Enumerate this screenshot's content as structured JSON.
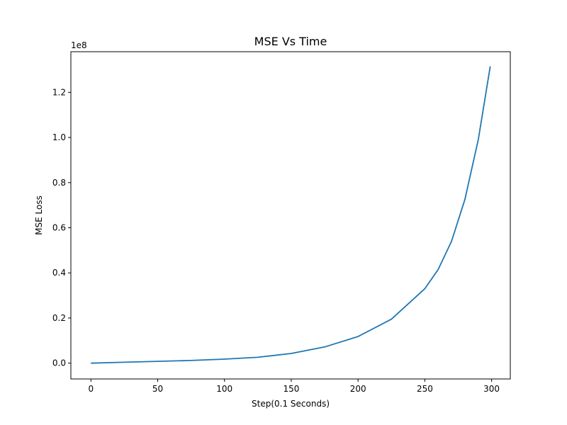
{
  "chart_data": {
    "type": "line",
    "title": "MSE Vs Time",
    "xlabel": "Step(0.1 Seconds)",
    "ylabel": "MSE Loss",
    "y_offset_label": "1e8",
    "xlim": [
      -15,
      314
    ],
    "ylim": [
      -7000000,
      138000000
    ],
    "x_ticks": [
      0,
      50,
      100,
      150,
      200,
      250,
      300
    ],
    "x_tick_labels": [
      "0",
      "50",
      "100",
      "150",
      "200",
      "250",
      "300"
    ],
    "y_ticks": [
      0,
      20000000,
      40000000,
      60000000,
      80000000,
      100000000,
      120000000
    ],
    "y_tick_labels": [
      "0.0",
      "0.2",
      "0.4",
      "0.6",
      "0.8",
      "1.0",
      "1.2"
    ],
    "grid": false,
    "series": [
      {
        "color": "#1f77b4",
        "x": [
          0,
          25,
          50,
          75,
          100,
          125,
          150,
          175,
          200,
          225,
          250,
          260,
          270,
          280,
          290,
          299
        ],
        "values": [
          0,
          400000,
          800000,
          1200000,
          1800000,
          2600000,
          4300000,
          7200000,
          11800000,
          19500000,
          33000000,
          41500000,
          54000000,
          72500000,
          99000000,
          131500000
        ]
      }
    ]
  }
}
